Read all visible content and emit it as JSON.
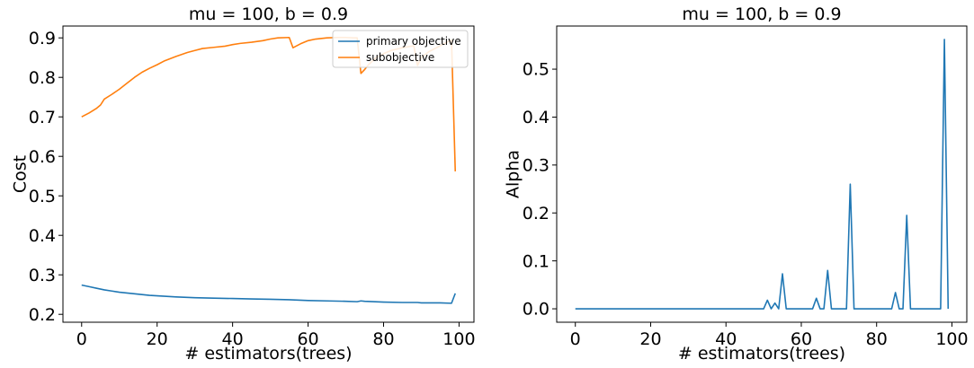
{
  "chart_data": [
    {
      "type": "line",
      "title": "mu = 100, b = 0.9",
      "xlabel": "# estimators(trees)",
      "ylabel": "Cost",
      "xlim": [
        -4.95,
        103.95
      ],
      "ylim": [
        0.18,
        0.93
      ],
      "xticks": [
        0,
        20,
        40,
        60,
        80,
        100
      ],
      "yticks": [
        0.2,
        0.3,
        0.4,
        0.5,
        0.6,
        0.7,
        0.8,
        0.9
      ],
      "grid": false,
      "legend_position": "top-right",
      "series": [
        {
          "name": "primary objective",
          "color": "#1f77b4",
          "x": [
            0,
            2,
            4,
            6,
            8,
            10,
            12,
            14,
            16,
            18,
            20,
            25,
            30,
            35,
            40,
            45,
            50,
            55,
            60,
            65,
            70,
            73,
            74,
            75,
            80,
            85,
            88,
            89,
            90,
            95,
            98,
            99
          ],
          "y": [
            0.274,
            0.27,
            0.266,
            0.262,
            0.259,
            0.256,
            0.254,
            0.252,
            0.25,
            0.248,
            0.247,
            0.244,
            0.242,
            0.241,
            0.24,
            0.239,
            0.238,
            0.237,
            0.235,
            0.234,
            0.233,
            0.232,
            0.234,
            0.233,
            0.231,
            0.23,
            0.23,
            0.23,
            0.229,
            0.229,
            0.228,
            0.253
          ]
        },
        {
          "name": "subobjective",
          "color": "#ff7f0e",
          "x": [
            0,
            2,
            4,
            5,
            6,
            8,
            10,
            12,
            14,
            16,
            18,
            20,
            22,
            25,
            28,
            30,
            32,
            35,
            38,
            40,
            42,
            45,
            48,
            50,
            52,
            55,
            56,
            58,
            60,
            62,
            65,
            68,
            70,
            72,
            73,
            74,
            75,
            76,
            78,
            80,
            82,
            85,
            88,
            89,
            90,
            92,
            95,
            97,
            98,
            99
          ],
          "y": [
            0.7,
            0.71,
            0.722,
            0.73,
            0.745,
            0.757,
            0.77,
            0.785,
            0.8,
            0.813,
            0.823,
            0.832,
            0.842,
            0.853,
            0.863,
            0.868,
            0.873,
            0.876,
            0.879,
            0.883,
            0.886,
            0.889,
            0.893,
            0.897,
            0.9,
            0.901,
            0.875,
            0.885,
            0.893,
            0.897,
            0.9,
            0.901,
            0.901,
            0.9,
            0.9,
            0.81,
            0.82,
            0.832,
            0.85,
            0.86,
            0.868,
            0.875,
            0.88,
            0.83,
            0.85,
            0.865,
            0.88,
            0.89,
            0.895,
            0.562
          ]
        }
      ]
    },
    {
      "type": "line",
      "title": "mu = 100, b = 0.9",
      "xlabel": "# estimators(trees)",
      "ylabel": "Alpha",
      "xlim": [
        -4.95,
        103.95
      ],
      "ylim": [
        -0.028,
        0.59
      ],
      "xticks": [
        0,
        20,
        40,
        60,
        80,
        100
      ],
      "yticks": [
        0.0,
        0.1,
        0.2,
        0.3,
        0.4,
        0.5
      ],
      "grid": false,
      "series": [
        {
          "color": "#1f77b4",
          "x": [
            0,
            50,
            51,
            52,
            53,
            54,
            55,
            56,
            62,
            63,
            64,
            65,
            66,
            67,
            68,
            72,
            73,
            74,
            84,
            85,
            86,
            87,
            88,
            89,
            96,
            97,
            98,
            99
          ],
          "y": [
            0,
            0,
            0.018,
            0,
            0.012,
            0,
            0.073,
            0,
            0,
            0,
            0.022,
            0,
            0,
            0.08,
            0,
            0,
            0.26,
            0,
            0,
            0.034,
            0,
            0,
            0.195,
            0,
            0,
            0,
            0.562,
            0
          ]
        }
      ]
    }
  ]
}
